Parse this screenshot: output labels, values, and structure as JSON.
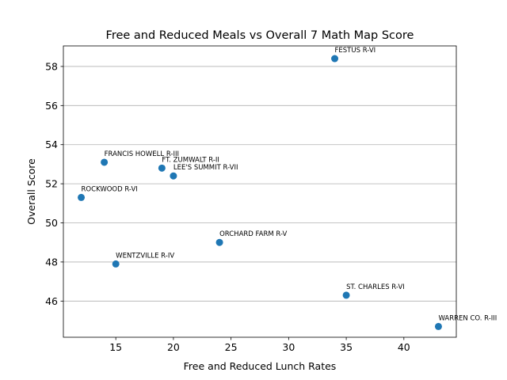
{
  "chart_data": {
    "type": "scatter",
    "title": "Free and Reduced Meals vs Overall 7 Math Map Score",
    "xlabel": "Free and Reduced Lunch Rates",
    "ylabel": "Overall Score",
    "xlim": [
      10.45,
      44.55
    ],
    "ylim": [
      44.15,
      59.05
    ],
    "xticks": [
      15,
      20,
      25,
      30,
      35,
      40
    ],
    "yticks": [
      46,
      48,
      50,
      52,
      54,
      56,
      58
    ],
    "grid": "horizontal",
    "marker_color": "#1f77b4",
    "points": [
      {
        "x": 12,
        "y": 51.3,
        "label": "ROCKWOOD R-VI"
      },
      {
        "x": 14,
        "y": 53.1,
        "label": "FRANCIS HOWELL R-III"
      },
      {
        "x": 15,
        "y": 47.9,
        "label": "WENTZVILLE R-IV"
      },
      {
        "x": 19,
        "y": 52.8,
        "label": "FT. ZUMWALT R-II"
      },
      {
        "x": 20,
        "y": 52.4,
        "label": "LEE'S SUMMIT R-VII"
      },
      {
        "x": 24,
        "y": 49.0,
        "label": "ORCHARD FARM R-V"
      },
      {
        "x": 34,
        "y": 58.4,
        "label": "FESTUS R-VI"
      },
      {
        "x": 35,
        "y": 46.3,
        "label": "ST. CHARLES R-VI"
      },
      {
        "x": 43,
        "y": 44.7,
        "label": "WARREN CO. R-III"
      }
    ]
  }
}
